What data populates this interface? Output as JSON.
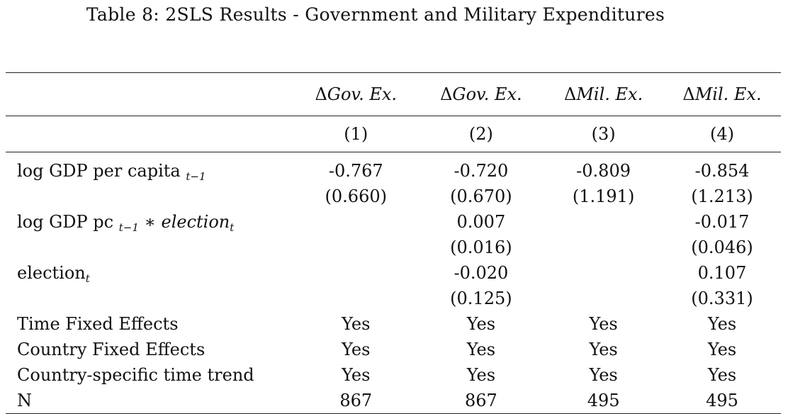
{
  "caption": "Table 8: 2SLS Results - Government and Military Expenditures",
  "columns": [
    {
      "delta": "Δ",
      "name": "Gov. Ex.",
      "num": "(1)"
    },
    {
      "delta": "Δ",
      "name": "Gov. Ex.",
      "num": "(2)"
    },
    {
      "delta": "Δ",
      "name": "Mil. Ex.",
      "num": "(3)"
    },
    {
      "delta": "Δ",
      "name": "Mil. Ex.",
      "num": "(4)"
    }
  ],
  "rows": {
    "gdp": {
      "label": "log GDP per capita",
      "sub": "t−1",
      "coef": [
        "-0.767",
        "-0.720",
        "-0.809",
        "-0.854"
      ],
      "se": [
        "(0.660)",
        "(0.670)",
        "(1.191)",
        "(1.213)"
      ]
    },
    "interaction": {
      "label": "log GDP pc",
      "sub": "t−1",
      "op": " ∗ ",
      "term": "election",
      "term_sub": "t",
      "coef": [
        "",
        "0.007",
        "",
        "-0.017"
      ],
      "se": [
        "",
        "(0.016)",
        "",
        "(0.046)"
      ]
    },
    "election": {
      "label": "election",
      "sub": "t",
      "coef": [
        "",
        "-0.020",
        "",
        "0.107"
      ],
      "se": [
        "",
        "(0.125)",
        "",
        "(0.331)"
      ]
    },
    "time_fe": {
      "label": "Time Fixed Effects",
      "vals": [
        "Yes",
        "Yes",
        "Yes",
        "Yes"
      ]
    },
    "country_fe": {
      "label": "Country Fixed Effects",
      "vals": [
        "Yes",
        "Yes",
        "Yes",
        "Yes"
      ]
    },
    "trend": {
      "label": "Country-specific time trend",
      "vals": [
        "Yes",
        "Yes",
        "Yes",
        "Yes"
      ]
    },
    "n": {
      "label": "N",
      "vals": [
        "867",
        "867",
        "495",
        "495"
      ]
    }
  }
}
